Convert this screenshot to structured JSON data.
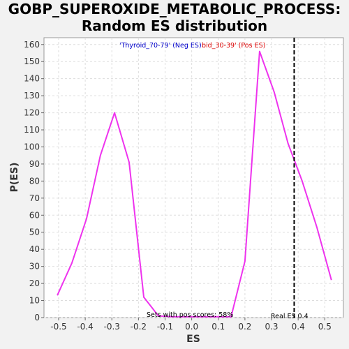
{
  "chart_data": {
    "type": "line",
    "title_line1": "GOBP_SUPEROXIDE_METABOLIC_PROCESS:",
    "title_line2": "Random ES distribution",
    "xlabel": "ES",
    "ylabel": "P(ES)",
    "xlim": [
      -0.555,
      0.57
    ],
    "ylim": [
      0,
      164
    ],
    "xticks": [
      -0.5,
      -0.4,
      -0.3,
      -0.2,
      -0.1,
      0.0,
      0.1,
      0.2,
      0.3,
      0.4,
      0.5
    ],
    "xtick_labels": [
      "-0.5",
      "-0.4",
      "-0.3",
      "-0.2",
      "-0.1",
      "0.0",
      "0.1",
      "0.2",
      "0.3",
      "0.4",
      "0.5"
    ],
    "yticks": [
      0,
      10,
      20,
      30,
      40,
      50,
      60,
      70,
      80,
      90,
      100,
      110,
      120,
      130,
      140,
      150,
      160
    ],
    "grid": true,
    "series": [
      {
        "color": "#ee33ee",
        "x": [
          -0.505,
          -0.45,
          -0.395,
          -0.343,
          -0.29,
          -0.235,
          -0.18,
          -0.125,
          -0.07,
          -0.015,
          0.04,
          0.095,
          0.148,
          0.2,
          0.255,
          0.31,
          0.362,
          0.415,
          0.47,
          0.525
        ],
        "y": [
          13,
          32,
          58,
          95,
          120,
          91,
          12,
          1,
          0.5,
          0.5,
          0.5,
          0.5,
          0.5,
          33,
          156,
          132,
          102,
          80,
          53,
          22
        ]
      }
    ],
    "real_es": 0.385,
    "annotations": {
      "neg_label": "'Thyroid_70-79' (Neg ES)",
      "neg_color": "#0000cc",
      "pos_label": "bid_30-39' (Pos ES)",
      "pos_color": "#dd0000",
      "pos_scores": "Sets with pos scores: 58%",
      "real_es_label": "Real ES 0.4"
    }
  }
}
